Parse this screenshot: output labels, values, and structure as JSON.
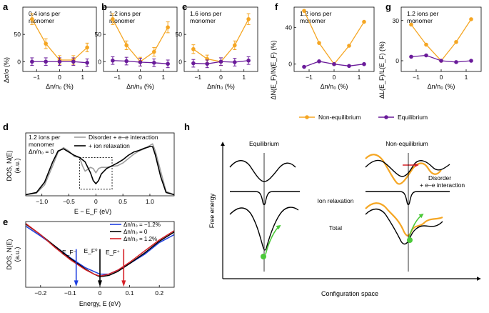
{
  "colors": {
    "orange": "#f5a623",
    "purple": "#6a1b9a",
    "black": "#000000",
    "gray": "#9e9e9e",
    "blue": "#1f3fe0",
    "red": "#d62027",
    "green": "#4cc93a"
  },
  "panel_labels": {
    "a": "a",
    "b": "b",
    "c": "c",
    "d": "d",
    "e": "e",
    "f": "f",
    "g": "g",
    "h": "h"
  },
  "axes": {
    "sigma_ylabel": "Δσ/σ (%)",
    "dn_xlabel": "Δn/n₀ (%)",
    "f_ylabel": "ΔN(E_F)/N(E_F) (%)",
    "g_ylabel": "ΔL(E_F)/L(E_F) (%)",
    "d_ylabel": "DOS, N(E)",
    "d_yunit": "(a.u.)",
    "d_xlabel": "E − E_F (eV)",
    "e_ylabel": "DOS, N(E)",
    "e_yunit": "(a.u.)",
    "e_xlabel": "Energy, E (eV)"
  },
  "legend_fg": {
    "noneq": "Non-equilibrium",
    "eq": "Equilibrium"
  },
  "legend_d": {
    "gray": "Disorder + e–e interaction",
    "black": "+ ion relaxation"
  },
  "legend_e": {
    "blue": "Δn/n₀ = −1.2%",
    "black": "Δn/n₀ = 0",
    "red": "Δn/n₀ = 1.2%"
  },
  "annot_d": {
    "line1": "1.2 ions per",
    "line2": "monomer",
    "line3": "Δn/n₀ = 0"
  },
  "annot_e": {
    "minus": "E_F⁻",
    "zero": "E_F⁰",
    "plus": "E_F⁺"
  },
  "h": {
    "eq_title": "Equilibrium",
    "neq_title": "Non-equilibrium",
    "disorder_l1": "Disorder",
    "disorder_l2": "+ e–e interaction",
    "ion": "Ion relaxation",
    "total": "Total",
    "ylabel": "Free energy",
    "xlabel": "Configuration space"
  },
  "chart_data": [
    {
      "panel": "a",
      "type": "line",
      "title": "0.4 ions per monomer",
      "xlabel": "Δn/n₀ (%)",
      "ylabel": "Δσ/σ (%)",
      "xlim": [
        -1.6,
        1.6
      ],
      "ylim": [
        -18,
        100
      ],
      "x_ticks": [
        -1,
        0,
        1
      ],
      "y_ticks": [
        0,
        50
      ],
      "series": [
        {
          "name": "Non-equilibrium",
          "x": [
            -1.2,
            -0.6,
            0,
            0.6,
            1.2
          ],
          "values": [
            78,
            33,
            3,
            3,
            26
          ],
          "err": [
            10,
            9,
            8,
            8,
            8
          ]
        },
        {
          "name": "Equilibrium",
          "x": [
            -1.2,
            -0.6,
            0,
            0.6,
            1.2
          ],
          "values": [
            0,
            0,
            0,
            0,
            -2
          ],
          "err": [
            7,
            7,
            7,
            7,
            7
          ]
        }
      ]
    },
    {
      "panel": "b",
      "type": "line",
      "title": "1.2 ions per monomer",
      "xlabel": "Δn/n₀ (%)",
      "ylabel": "",
      "xlim": [
        -1.6,
        1.6
      ],
      "ylim": [
        -18,
        100
      ],
      "x_ticks": [
        -1,
        0,
        1
      ],
      "y_ticks": [
        0,
        50
      ],
      "series": [
        {
          "name": "Non-equilibrium",
          "x": [
            -1.2,
            -0.6,
            0,
            0.6,
            1.2
          ],
          "values": [
            78,
            30,
            0,
            18,
            63
          ],
          "err": [
            10,
            8,
            8,
            8,
            10
          ]
        },
        {
          "name": "Equilibrium",
          "x": [
            -1.2,
            -0.6,
            0,
            0.6,
            1.2
          ],
          "values": [
            2,
            1,
            -1,
            -2,
            -4
          ],
          "err": [
            7,
            7,
            7,
            7,
            7
          ]
        }
      ]
    },
    {
      "panel": "c",
      "type": "line",
      "title": "1.6 ions per monomer",
      "xlabel": "Δn/n₀ (%)",
      "ylabel": "",
      "xlim": [
        -1.6,
        1.6
      ],
      "ylim": [
        -18,
        100
      ],
      "x_ticks": [
        -1,
        0,
        1
      ],
      "y_ticks": [
        0,
        50
      ],
      "series": [
        {
          "name": "Non-equilibrium",
          "x": [
            -1.2,
            -0.6,
            0,
            0.6,
            1.2
          ],
          "values": [
            23,
            5,
            0,
            30,
            78
          ],
          "err": [
            8,
            7,
            7,
            8,
            10
          ]
        },
        {
          "name": "Equilibrium",
          "x": [
            -1.2,
            -0.6,
            0,
            0.6,
            1.2
          ],
          "values": [
            -3,
            -4,
            0,
            -1,
            2
          ],
          "err": [
            7,
            7,
            7,
            7,
            7
          ]
        }
      ]
    },
    {
      "panel": "f",
      "type": "line",
      "title": "1.2 ions per monomer",
      "xlabel": "Δn/n₀ (%)",
      "ylabel": "ΔN(E_F)/N(E_F) (%)",
      "xlim": [
        -1.6,
        1.6
      ],
      "ylim": [
        -8,
        62
      ],
      "x_ticks": [
        -1,
        0,
        1
      ],
      "y_ticks": [
        0,
        40
      ],
      "series": [
        {
          "name": "Non-equilibrium",
          "x": [
            -1.2,
            -0.6,
            0,
            0.6,
            1.2
          ],
          "values": [
            58,
            23,
            0,
            20,
            46
          ]
        },
        {
          "name": "Equilibrium",
          "x": [
            -1.2,
            -0.6,
            0,
            0.6,
            1.2
          ],
          "values": [
            -3,
            3,
            0,
            -2,
            0
          ]
        }
      ]
    },
    {
      "panel": "g",
      "type": "line",
      "title": "1.2 ions per monomer",
      "xlabel": "Δn/n₀ (%)",
      "ylabel": "ΔL(E_F)/L(E_F) (%)",
      "xlim": [
        -1.6,
        1.6
      ],
      "ylim": [
        -8,
        40
      ],
      "x_ticks": [
        -1,
        0,
        1
      ],
      "y_ticks": [
        0,
        30
      ],
      "series": [
        {
          "name": "Non-equilibrium",
          "x": [
            -1.2,
            -0.6,
            0,
            0.6,
            1.2
          ],
          "values": [
            27,
            12,
            0,
            14,
            31
          ]
        },
        {
          "name": "Equilibrium",
          "x": [
            -1.2,
            -0.6,
            0,
            0.6,
            1.2
          ],
          "values": [
            3,
            4,
            0,
            -1,
            0
          ]
        }
      ]
    },
    {
      "panel": "d",
      "type": "line",
      "title": "",
      "xlabel": "E − E_F (eV)",
      "ylabel": "DOS, N(E) (a.u.)",
      "xlim": [
        -1.3,
        1.45
      ],
      "ylim": [
        0,
        1.15
      ],
      "x_ticks": [
        -1,
        -0.5,
        0,
        0.5,
        1
      ],
      "x_tick_labels": [
        "−1.0",
        "−0.5",
        "0",
        "0.5",
        "1.0"
      ],
      "series": [
        {
          "name": "Disorder + e–e interaction",
          "x": [
            -1.3,
            -1.1,
            -0.95,
            -0.8,
            -0.7,
            -0.6,
            -0.5,
            -0.4,
            -0.3,
            -0.25,
            -0.2,
            -0.1,
            -0.05,
            0,
            0.05,
            0.1,
            0.2,
            0.3,
            0.4,
            0.5,
            0.6,
            0.7,
            0.8,
            0.9,
            1.0,
            1.05,
            1.1,
            1.2,
            1.3,
            1.45
          ],
          "values": [
            0.02,
            0.05,
            0.2,
            0.55,
            0.8,
            0.88,
            0.82,
            0.72,
            0.7,
            0.55,
            0.45,
            0.52,
            0.5,
            0.42,
            0.5,
            0.52,
            0.52,
            0.54,
            0.55,
            0.6,
            0.68,
            0.76,
            0.82,
            0.86,
            0.92,
            0.95,
            0.82,
            0.45,
            0.08,
            0.02
          ]
        },
        {
          "name": "+ ion relaxation",
          "x": [
            -1.3,
            -1.1,
            -0.95,
            -0.8,
            -0.7,
            -0.6,
            -0.5,
            -0.4,
            -0.3,
            -0.2,
            -0.1,
            -0.05,
            0,
            0.05,
            0.1,
            0.2,
            0.3,
            0.4,
            0.5,
            0.6,
            0.7,
            0.8,
            0.9,
            1.0,
            1.05,
            1.1,
            1.2,
            1.3,
            1.45
          ],
          "values": [
            0.02,
            0.06,
            0.25,
            0.62,
            0.82,
            0.86,
            0.8,
            0.74,
            0.7,
            0.62,
            0.42,
            0.28,
            0.22,
            0.28,
            0.4,
            0.5,
            0.55,
            0.6,
            0.66,
            0.74,
            0.8,
            0.83,
            0.87,
            0.9,
            0.9,
            0.75,
            0.35,
            0.06,
            0.02
          ]
        }
      ]
    },
    {
      "panel": "e",
      "type": "line",
      "title": "",
      "xlabel": "Energy, E (eV)",
      "ylabel": "DOS, N(E) (a.u.)",
      "xlim": [
        -0.25,
        0.25
      ],
      "ylim": [
        0,
        1
      ],
      "x_ticks": [
        -0.2,
        -0.1,
        0,
        0.1,
        0.2
      ],
      "x_tick_labels": [
        "−0.2",
        "−0.1",
        "0",
        "0.1",
        "0.2"
      ],
      "fermi_levels": {
        "minus": -0.08,
        "zero": 0,
        "plus": 0.08
      },
      "series": [
        {
          "name": "Δn/n₀ = −1.2%",
          "x": [
            -0.25,
            -0.2,
            -0.15,
            -0.1,
            -0.05,
            -0.02,
            0,
            0.03,
            0.06,
            0.1,
            0.15,
            0.2,
            0.25
          ],
          "values": [
            0.93,
            0.78,
            0.62,
            0.45,
            0.3,
            0.24,
            0.2,
            0.2,
            0.26,
            0.36,
            0.5,
            0.68,
            0.8
          ]
        },
        {
          "name": "Δn/n₀ = 0",
          "x": [
            -0.25,
            -0.2,
            -0.15,
            -0.1,
            -0.05,
            -0.02,
            0,
            0.03,
            0.06,
            0.1,
            0.15,
            0.2,
            0.25
          ],
          "values": [
            0.96,
            0.8,
            0.62,
            0.44,
            0.28,
            0.2,
            0.16,
            0.18,
            0.24,
            0.36,
            0.52,
            0.7,
            0.84
          ]
        },
        {
          "name": "Δn/n₀ = 1.2%",
          "x": [
            -0.25,
            -0.2,
            -0.15,
            -0.1,
            -0.05,
            -0.02,
            0,
            0.03,
            0.06,
            0.1,
            0.15,
            0.2,
            0.25
          ],
          "values": [
            0.97,
            0.8,
            0.6,
            0.42,
            0.27,
            0.2,
            0.17,
            0.2,
            0.26,
            0.38,
            0.55,
            0.72,
            0.86
          ]
        }
      ]
    }
  ]
}
